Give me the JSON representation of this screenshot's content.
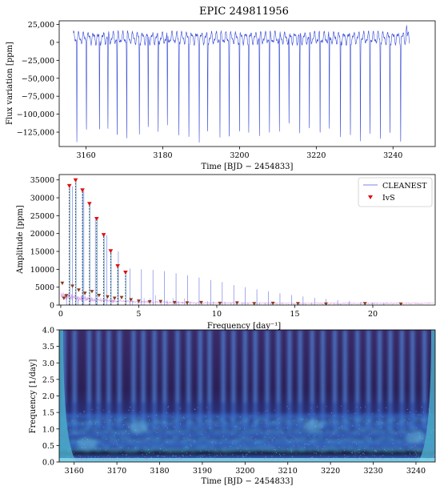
{
  "figure": {
    "title": "EPIC 249811956"
  },
  "chart_data": [
    {
      "type": "line",
      "ylabel": "Flux variation [ppm]",
      "xlabel": "Time [BJD − 2454833]",
      "xlim": [
        3153,
        3251
      ],
      "ylim": [
        -145000,
        30000
      ],
      "xticks": [
        3160,
        3180,
        3200,
        3220,
        3240
      ],
      "yticks": [
        25000,
        0,
        -25000,
        -50000,
        -75000,
        -100000,
        -125000
      ],
      "ytick_labels": [
        "25,000",
        "0",
        "−25,000",
        "−50,000",
        "−75,000",
        "−100,000",
        "−125,000"
      ],
      "series": [
        {
          "color": "#3b4fd8",
          "t_start": 3156.7,
          "t_end": 3244.3,
          "eclipse_times": [
            3157.6,
            3160.1,
            3163.5,
            3165.7,
            3168.1,
            3170.6,
            3173.9,
            3176.2,
            3178.8,
            3181.2,
            3184.2,
            3186.8,
            3189.5,
            3191.7,
            3194.9,
            3197.3,
            3200.0,
            3202.4,
            3205.2,
            3207.8,
            3210.4,
            3212.9,
            3215.7,
            3218.2,
            3221.0,
            3223.4,
            3226.3,
            3228.9,
            3231.5,
            3234.0,
            3236.7,
            3239.2,
            3242.0
          ],
          "eclipse_depths": [
            -133000,
            -115000,
            -128000,
            -125000,
            -132000,
            -133000,
            -127000,
            -126000,
            -130000,
            -124000,
            -128000,
            -127000,
            -130000,
            -127000,
            -129000,
            -128000,
            -130000,
            -122000,
            -130000,
            -126000,
            -131000,
            -123000,
            -133000,
            -126000,
            -132000,
            -128000,
            -133000,
            -127000,
            -131000,
            -123000,
            -132000,
            -126000,
            -135000
          ],
          "baseline_range": [
            -8000,
            18000
          ],
          "end_spike": 24000
        }
      ]
    },
    {
      "type": "line",
      "ylabel": "Amplitude [ppm]",
      "xlabel": "Frequency [day⁻¹]",
      "xlim": [
        -0.1,
        24.0
      ],
      "ylim": [
        0,
        36500
      ],
      "xticks": [
        0,
        5,
        10,
        15,
        20
      ],
      "yticks": [
        0,
        5000,
        10000,
        15000,
        20000,
        25000,
        30000,
        35000
      ],
      "ytick_labels": [
        "0",
        "5000",
        "10000",
        "15000",
        "20000",
        "25000",
        "30000",
        "35000"
      ],
      "legend_position": "top-right",
      "series": [
        {
          "name": "CLEANEST",
          "color": "#7b85e6",
          "peaks": [
            [
              0.37,
              2200
            ],
            [
              0.74,
              33200
            ],
            [
              1.11,
              1500
            ],
            [
              1.48,
              32000
            ],
            [
              2.22,
              24000
            ],
            [
              2.96,
              19500
            ],
            [
              3.69,
              15000
            ],
            [
              4.43,
              10200
            ],
            [
              5.17,
              10000
            ],
            [
              5.91,
              9800
            ],
            [
              6.65,
              9500
            ],
            [
              7.39,
              8900
            ],
            [
              8.13,
              8300
            ],
            [
              8.87,
              7700
            ],
            [
              9.61,
              7000
            ],
            [
              10.35,
              6400
            ],
            [
              11.09,
              5600
            ],
            [
              11.83,
              5000
            ],
            [
              12.57,
              4400
            ],
            [
              13.31,
              3800
            ],
            [
              14.05,
              3300
            ],
            [
              14.79,
              2800
            ],
            [
              15.53,
              2400
            ],
            [
              16.27,
              2000
            ],
            [
              17.01,
              1700
            ],
            [
              17.75,
              1400
            ],
            [
              18.49,
              1100
            ],
            [
              19.23,
              900
            ],
            [
              19.97,
              700
            ],
            [
              20.71,
              600
            ]
          ],
          "primary_peaks": [
            [
              0.55,
              33200
            ],
            [
              0.95,
              34800
            ],
            [
              1.39,
              32000
            ],
            [
              1.84,
              28200
            ],
            [
              2.3,
              24000
            ],
            [
              2.75,
              19500
            ],
            [
              3.2,
              15000
            ],
            [
              3.65,
              10800
            ],
            [
              4.15,
              9000
            ]
          ]
        },
        {
          "name": "IvS",
          "color": "#e01010",
          "marker": "triangle-down",
          "points": [
            [
              0.55,
              33200
            ],
            [
              0.95,
              34800
            ],
            [
              1.39,
              32000
            ],
            [
              1.84,
              28200
            ],
            [
              2.3,
              24000
            ],
            [
              2.75,
              19500
            ],
            [
              3.2,
              15000
            ],
            [
              3.65,
              10800
            ],
            [
              4.15,
              9000
            ]
          ],
          "minor_points": [
            [
              0.1,
              6000
            ],
            [
              0.2,
              1800
            ],
            [
              0.35,
              2500
            ],
            [
              0.75,
              5200
            ],
            [
              1.15,
              4100
            ],
            [
              1.55,
              3200
            ],
            [
              2.0,
              3700
            ],
            [
              2.45,
              2600
            ],
            [
              3.0,
              2200
            ],
            [
              3.45,
              1800
            ],
            [
              3.9,
              2000
            ],
            [
              4.5,
              1400
            ],
            [
              5.0,
              1000
            ],
            [
              5.7,
              800
            ],
            [
              6.4,
              900
            ],
            [
              7.3,
              600
            ],
            [
              8.1,
              500
            ],
            [
              9.0,
              600
            ],
            [
              10.2,
              400
            ],
            [
              11.3,
              500
            ],
            [
              12.4,
              300
            ],
            [
              13.6,
              400
            ],
            [
              15.2,
              300
            ],
            [
              17.0,
              200
            ],
            [
              19.5,
              300
            ],
            [
              21.8,
              200
            ]
          ]
        }
      ]
    },
    {
      "type": "heatmap",
      "ylabel": "Frequency [1/day]",
      "xlabel": "Time [BJD − 2454833]",
      "xlim": [
        3156.5,
        3244.5
      ],
      "ylim": [
        0,
        4.0
      ],
      "xticks": [
        3160,
        3170,
        3180,
        3190,
        3200,
        3210,
        3220,
        3230,
        3240
      ],
      "yticks": [
        0.0,
        0.5,
        1.0,
        1.5,
        2.0,
        2.5,
        3.0,
        3.5,
        4.0
      ],
      "ytick_labels": [
        "0.0",
        "0.5",
        "1.0",
        "1.5",
        "2.0",
        "2.5",
        "3.0",
        "3.5",
        "4.0"
      ],
      "colormap": [
        "#1a0a24",
        "#2b1c5c",
        "#2d4fb8",
        "#3f86e0",
        "#7fd8f0"
      ],
      "bright_band_frequencies": [
        0.28,
        0.55,
        0.83,
        1.1,
        1.38
      ]
    }
  ]
}
